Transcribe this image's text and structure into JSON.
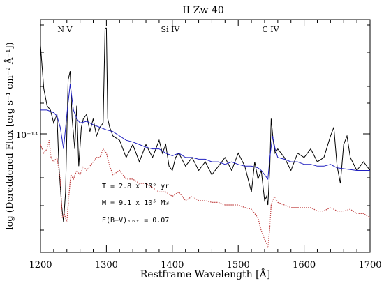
{
  "chart_data": {
    "type": "line",
    "title": "II Zw 40",
    "xlabel": "Restframe Wavelength [Å]",
    "ylabel": "log (Dereddened Flux [erg s⁻¹ cm⁻² Å⁻¹])",
    "xlim": [
      1200,
      1700
    ],
    "x_ticks": [
      1200,
      1300,
      1400,
      1500,
      1600,
      1700
    ],
    "y_tick_label": "10⁻¹³",
    "line_labels": [
      {
        "text": "N V",
        "x": 1237
      },
      {
        "text": "Si IV",
        "x": 1397
      },
      {
        "text": "C IV",
        "x": 1549
      }
    ],
    "annotations": [
      "T = 2.8 x 10⁶ yr",
      "M = 9.1 x 10⁵ M☉",
      "E(B−V)ᵢₙₜ = 0.07"
    ],
    "series": [
      {
        "color": "#000000",
        "style": "solid",
        "x": [
          1200,
          1205,
          1210,
          1215,
          1220,
          1225,
          1228,
          1232,
          1235,
          1238,
          1240,
          1242,
          1245,
          1248,
          1252,
          1255,
          1258,
          1262,
          1265,
          1270,
          1275,
          1280,
          1285,
          1290,
          1295,
          1298,
          1300,
          1302,
          1305,
          1310,
          1320,
          1330,
          1340,
          1350,
          1360,
          1370,
          1380,
          1385,
          1390,
          1395,
          1400,
          1405,
          1410,
          1420,
          1430,
          1440,
          1450,
          1460,
          1470,
          1480,
          1490,
          1500,
          1510,
          1520,
          1525,
          1530,
          1535,
          1540,
          1543,
          1545,
          1548,
          1550,
          1553,
          1556,
          1560,
          1570,
          1580,
          1590,
          1600,
          1610,
          1620,
          1630,
          1640,
          1645,
          1650,
          1655,
          1660,
          1665,
          1670,
          1680,
          1690,
          1700
        ],
        "y": [
          2.3,
          1.8,
          1.6,
          1.55,
          1.4,
          1.5,
          0.9,
          0.45,
          0.25,
          0.6,
          1.3,
          1.9,
          2.0,
          1.45,
          1.1,
          1.6,
          0.9,
          1.35,
          1.45,
          1.5,
          1.3,
          1.45,
          1.25,
          1.35,
          1.4,
          2.5,
          2.5,
          1.45,
          1.35,
          1.25,
          1.2,
          1.0,
          1.15,
          0.95,
          1.15,
          1.0,
          1.2,
          1.05,
          1.15,
          0.9,
          0.85,
          1.0,
          1.05,
          0.9,
          1.0,
          0.85,
          0.95,
          0.8,
          0.9,
          1.0,
          0.85,
          1.05,
          0.9,
          0.6,
          0.95,
          0.75,
          0.85,
          0.5,
          0.55,
          0.45,
          0.9,
          1.45,
          1.2,
          1.05,
          1.1,
          1.0,
          0.85,
          1.05,
          1.0,
          1.1,
          0.95,
          1.0,
          1.25,
          1.35,
          0.9,
          0.7,
          1.15,
          1.25,
          1.0,
          0.85,
          0.95,
          0.85
        ]
      },
      {
        "color": "#2020c0",
        "style": "solid",
        "x": [
          1200,
          1210,
          1220,
          1225,
          1230,
          1235,
          1240,
          1245,
          1250,
          1255,
          1260,
          1270,
          1280,
          1290,
          1300,
          1310,
          1320,
          1330,
          1340,
          1350,
          1360,
          1370,
          1380,
          1390,
          1400,
          1410,
          1420,
          1430,
          1440,
          1450,
          1460,
          1470,
          1480,
          1490,
          1500,
          1510,
          1520,
          1530,
          1535,
          1540,
          1545,
          1548,
          1552,
          1556,
          1560,
          1570,
          1580,
          1590,
          1600,
          1610,
          1620,
          1630,
          1640,
          1650,
          1660,
          1670,
          1680,
          1690,
          1700
        ],
        "y": [
          1.55,
          1.55,
          1.52,
          1.48,
          1.35,
          1.1,
          1.5,
          1.85,
          1.55,
          1.45,
          1.4,
          1.42,
          1.38,
          1.35,
          1.32,
          1.3,
          1.25,
          1.2,
          1.18,
          1.15,
          1.12,
          1.1,
          1.1,
          1.05,
          1.02,
          1.05,
          1.0,
          1.0,
          0.98,
          0.98,
          0.95,
          0.95,
          0.92,
          0.95,
          0.92,
          0.9,
          0.9,
          0.88,
          0.85,
          0.8,
          0.75,
          1.0,
          1.25,
          1.1,
          1.0,
          0.98,
          0.95,
          0.95,
          0.92,
          0.92,
          0.9,
          0.9,
          0.92,
          0.88,
          0.87,
          0.86,
          0.85,
          0.85,
          0.85
        ]
      },
      {
        "color": "#c04040",
        "style": "dotted",
        "x": [
          1200,
          1205,
          1210,
          1213,
          1216,
          1220,
          1225,
          1230,
          1233,
          1236,
          1240,
          1243,
          1246,
          1250,
          1255,
          1260,
          1265,
          1270,
          1275,
          1280,
          1285,
          1290,
          1295,
          1300,
          1305,
          1310,
          1320,
          1330,
          1340,
          1350,
          1360,
          1370,
          1380,
          1390,
          1400,
          1410,
          1420,
          1430,
          1440,
          1450,
          1460,
          1470,
          1480,
          1490,
          1500,
          1510,
          1520,
          1530,
          1535,
          1540,
          1543,
          1545,
          1548,
          1550,
          1555,
          1560,
          1570,
          1580,
          1590,
          1600,
          1610,
          1620,
          1630,
          1640,
          1650,
          1660,
          1670,
          1680,
          1690,
          1700
        ],
        "y": [
          1.15,
          1.05,
          1.1,
          1.2,
          1.0,
          0.95,
          1.0,
          0.75,
          0.3,
          0.35,
          0.25,
          0.55,
          0.8,
          0.75,
          0.85,
          0.8,
          0.9,
          0.85,
          0.9,
          0.95,
          1.0,
          1.0,
          1.1,
          1.05,
          0.9,
          0.8,
          0.85,
          0.75,
          0.75,
          0.7,
          0.7,
          0.65,
          0.6,
          0.6,
          0.55,
          0.6,
          0.5,
          0.55,
          0.5,
          0.5,
          0.48,
          0.48,
          0.45,
          0.45,
          0.45,
          0.42,
          0.4,
          0.3,
          0.15,
          0.05,
          0.0,
          -0.05,
          0.2,
          0.45,
          0.55,
          0.48,
          0.45,
          0.42,
          0.42,
          0.42,
          0.42,
          0.38,
          0.38,
          0.42,
          0.38,
          0.38,
          0.4,
          0.35,
          0.35,
          0.3
        ]
      }
    ]
  }
}
